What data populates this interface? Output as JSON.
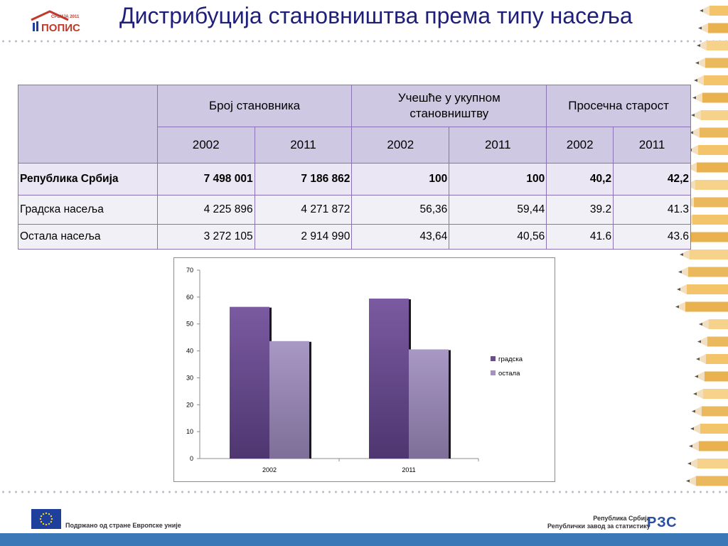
{
  "logo": {
    "top_text": "СРБИЈА 2011",
    "word": "ПОПИС"
  },
  "title": "Дистрибуција становништва према типу насеља",
  "table": {
    "group_headers": [
      "Број становника",
      "Учешће у укупном становништву",
      "Просечна старост"
    ],
    "years": [
      "2002",
      "2011",
      "2002",
      "2011",
      "2002",
      "2011"
    ],
    "rows": [
      {
        "label": "Република Србија",
        "values": [
          "7 498 001",
          "7 186 862",
          "100",
          "100",
          "40,2",
          "42,2"
        ]
      },
      {
        "label": "Градска насеља",
        "values": [
          "4 225 896",
          "4 271 872",
          "56,36",
          "59,44",
          "39.2",
          "41.3"
        ]
      },
      {
        "label": "Остала насеља",
        "values": [
          "3 272 105",
          "2 914 990",
          "43,64",
          "40,56",
          "41.6",
          "43.6"
        ]
      }
    ]
  },
  "chart_data": {
    "type": "bar",
    "categories": [
      "2002",
      "2011"
    ],
    "series": [
      {
        "name": "градска",
        "values": [
          56.36,
          59.44
        ],
        "color": "#6b4c8e"
      },
      {
        "name": "остала",
        "values": [
          43.64,
          40.56
        ],
        "color": "#a593be"
      }
    ],
    "ylim": [
      0,
      70
    ],
    "yticks": [
      0,
      10,
      20,
      30,
      40,
      50,
      60,
      70
    ],
    "legend": "right",
    "grid": false
  },
  "footer": {
    "eu_text": "Подржано од стране Европске уније",
    "rzs_line1": "Република Србија",
    "rzs_line2": "Републички завод за статистику",
    "rzs_logo": "РЗС"
  },
  "colors": {
    "title": "#1f1f7a",
    "table_border": "#8b72b5",
    "header_bg": "#cfc8e3",
    "bar_bottom": "#3a78b7"
  }
}
